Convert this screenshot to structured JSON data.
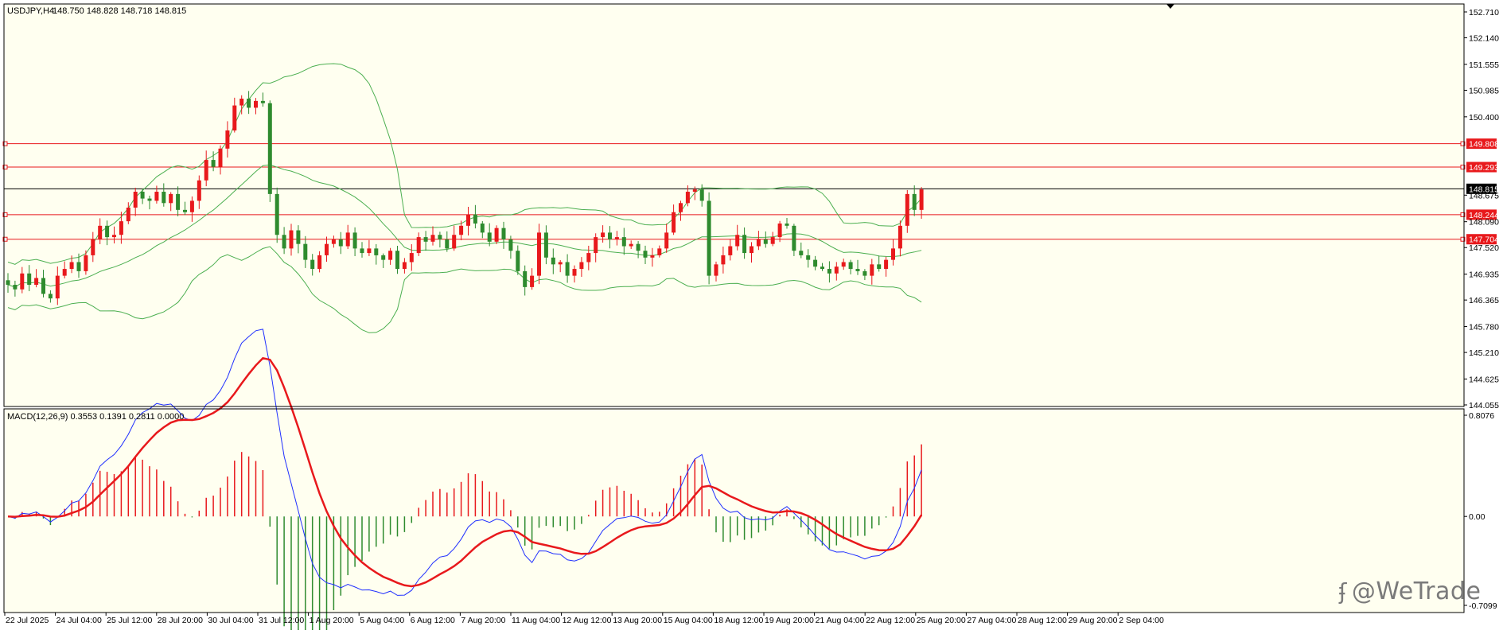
{
  "symbol_title": "USDJPY,H4",
  "ohlc_readout": "148.750 148.828 148.718 148.815",
  "macd_label": "MACD(12,26,9) 0.3553 0.1391 0.2811 0.0000",
  "watermark": "@WeTrade",
  "colors": {
    "background": "#fffff0",
    "bull_candle": "#e8191c",
    "bear_candle": "#2e8b2e",
    "bollinger": "#4caf50",
    "level_line": "#e8191c",
    "current_price_line": "#000000",
    "macd_main": "#1f2fff",
    "macd_signal": "#e8191c",
    "hist_pos": "#e8191c",
    "hist_neg": "#2e8b2e"
  },
  "chart_data": [
    {
      "type": "candlestick",
      "title": "USDJPY,H4",
      "ylim": [
        144.055,
        152.71
      ],
      "price_ticks": [
        "152.710",
        "152.140",
        "151.555",
        "150.985",
        "150.400",
        "149.808",
        "149.293",
        "148.815",
        "148.675",
        "148.244",
        "148.090",
        "147.704",
        "147.520",
        "146.935",
        "146.365",
        "145.780",
        "145.210",
        "144.625",
        "144.055"
      ],
      "x_labels": [
        "22 Jul 2025",
        "24 Jul 04:00",
        "25 Jul 12:00",
        "28 Jul 20:00",
        "30 Jul 04:00",
        "31 Jul 12:00",
        "1 Aug 20:00",
        "5 Aug 04:00",
        "6 Aug 12:00",
        "7 Aug 20:00",
        "11 Aug 04:00",
        "12 Aug 12:00",
        "13 Aug 20:00",
        "15 Aug 04:00",
        "18 Aug 12:00",
        "19 Aug 20:00",
        "21 Aug 04:00",
        "22 Aug 12:00",
        "25 Aug 20:00",
        "27 Aug 04:00",
        "28 Aug 12:00",
        "29 Aug 20:00",
        "2 Sep 04:00"
      ],
      "horizontal_levels": [
        {
          "price": 149.808,
          "label": "149.808",
          "kind": "level"
        },
        {
          "price": 149.293,
          "label": "149.293",
          "kind": "level"
        },
        {
          "price": 148.815,
          "label": "148.815",
          "kind": "current"
        },
        {
          "price": 148.244,
          "label": "148.244",
          "kind": "level"
        },
        {
          "price": 147.704,
          "label": "147.704",
          "kind": "level"
        }
      ],
      "close_series": [
        146.7,
        146.6,
        146.95,
        146.7,
        146.85,
        146.5,
        146.4,
        146.9,
        147.05,
        147.2,
        147.0,
        147.35,
        147.7,
        148.0,
        147.75,
        147.8,
        148.1,
        148.4,
        148.75,
        148.6,
        148.55,
        148.75,
        148.5,
        148.7,
        148.35,
        148.3,
        148.55,
        149.0,
        149.45,
        149.3,
        149.7,
        150.1,
        150.65,
        150.8,
        150.6,
        150.75,
        150.7,
        148.7,
        147.8,
        147.5,
        147.9,
        147.6,
        147.25,
        147.05,
        147.35,
        147.6,
        147.7,
        147.55,
        147.85,
        147.5,
        147.4,
        147.5,
        147.35,
        147.25,
        147.45,
        147.05,
        147.2,
        147.4,
        147.75,
        147.65,
        147.8,
        147.7,
        147.5,
        147.8,
        148.0,
        148.25,
        148.05,
        147.85,
        147.65,
        147.95,
        147.7,
        147.45,
        147.0,
        146.65,
        146.9,
        147.85,
        147.3,
        147.15,
        147.2,
        146.9,
        147.05,
        147.2,
        147.4,
        147.75,
        147.85,
        147.7,
        147.75,
        147.55,
        147.6,
        147.45,
        147.3,
        147.35,
        147.5,
        147.85,
        148.3,
        148.5,
        148.75,
        148.8,
        148.55,
        146.9,
        147.15,
        147.35,
        147.55,
        147.8,
        147.4,
        147.55,
        147.7,
        147.6,
        147.75,
        148.05,
        148.0,
        147.45,
        147.35,
        147.25,
        147.1,
        147.05,
        146.95,
        147.1,
        147.2,
        147.05,
        147.0,
        146.9,
        147.15,
        147.05,
        147.25,
        147.5,
        148.0,
        148.7,
        148.35,
        148.8
      ],
      "bands": {
        "middle": "20-period SMA",
        "deviation": 2.0
      }
    },
    {
      "type": "line",
      "title": "MACD(12,26,9)",
      "ylim": [
        -0.7099,
        0.8076
      ],
      "ticks": [
        "0.8076",
        "0.00",
        "-0.7099"
      ],
      "series": [
        {
          "values_note": "main",
          "last": 0.3553
        },
        {
          "values_note": "signal",
          "last": 0.1391
        },
        {
          "values_note": "histogram",
          "last": 0.2811
        }
      ]
    }
  ]
}
